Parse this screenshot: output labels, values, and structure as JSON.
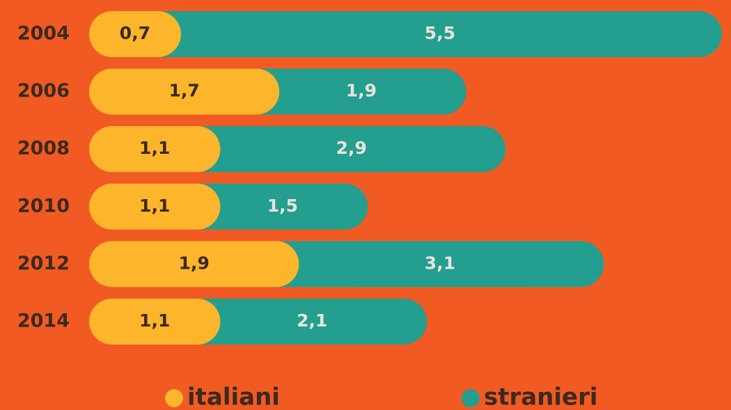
{
  "chart_data": {
    "type": "stacked-bar-horizontal",
    "categories": [
      "2004",
      "2006",
      "2008",
      "2010",
      "2012",
      "2014"
    ],
    "series": [
      {
        "name": "italiani",
        "color": "#fdb52b",
        "values": [
          0.7,
          1.7,
          1.1,
          1.1,
          1.9,
          1.1
        ],
        "value_labels": [
          "0,7",
          "1,7",
          "1,1",
          "1,1",
          "1,9",
          "1,1"
        ]
      },
      {
        "name": "stranieri",
        "color": "#239e8f",
        "values": [
          5.5,
          1.9,
          2.9,
          1.5,
          3.1,
          2.1
        ],
        "value_labels": [
          "5,5",
          "1,9",
          "2,9",
          "1,5",
          "3,1",
          "2,1"
        ]
      }
    ],
    "legend": "bottom"
  }
}
